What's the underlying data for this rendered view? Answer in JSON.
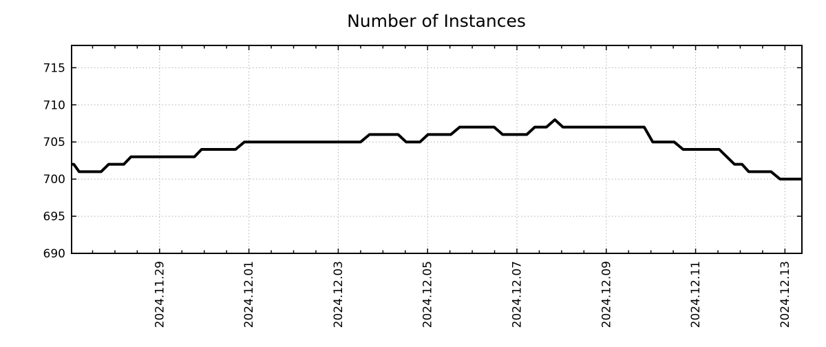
{
  "chart_data": {
    "type": "line",
    "title": "Number of Instances",
    "x_unit": "days (day 0 = 2024.11.27, i.e. two days before first labeled tick)",
    "xlim_days": [
      0.03,
      16.38
    ],
    "ylim": [
      690,
      718
    ],
    "y_ticks": [
      690,
      695,
      700,
      705,
      710,
      715
    ],
    "x_ticks": [
      {
        "label": "2024.11.29",
        "day": 2
      },
      {
        "label": "2024.12.01",
        "day": 4
      },
      {
        "label": "2024.12.03",
        "day": 6
      },
      {
        "label": "2024.12.05",
        "day": 8
      },
      {
        "label": "2024.12.07",
        "day": 10
      },
      {
        "label": "2024.12.09",
        "day": 12
      },
      {
        "label": "2024.12.11",
        "day": 14
      },
      {
        "label": "2024.12.13",
        "day": 16
      }
    ],
    "x_minor_tick_step_days": 0.5,
    "grid": "dotted",
    "legend": "none",
    "series": [
      {
        "name": "instances",
        "points": [
          [
            0.03,
            702
          ],
          [
            0.08,
            702
          ],
          [
            0.2,
            701
          ],
          [
            0.69,
            701
          ],
          [
            0.86,
            702
          ],
          [
            1.2,
            702
          ],
          [
            1.36,
            703
          ],
          [
            2.78,
            703
          ],
          [
            2.94,
            704
          ],
          [
            3.7,
            704
          ],
          [
            3.9,
            705
          ],
          [
            6.5,
            705
          ],
          [
            6.7,
            706
          ],
          [
            7.34,
            706
          ],
          [
            7.52,
            705
          ],
          [
            7.83,
            705
          ],
          [
            8.01,
            706
          ],
          [
            8.52,
            706
          ],
          [
            8.72,
            707
          ],
          [
            9.49,
            707
          ],
          [
            9.68,
            706
          ],
          [
            10.22,
            706
          ],
          [
            10.4,
            707
          ],
          [
            10.66,
            707
          ],
          [
            10.85,
            708
          ],
          [
            11.03,
            707
          ],
          [
            12.85,
            707
          ],
          [
            13.04,
            705
          ],
          [
            13.52,
            705
          ],
          [
            13.72,
            704
          ],
          [
            14.53,
            704
          ],
          [
            14.87,
            702
          ],
          [
            15.04,
            702
          ],
          [
            15.19,
            701
          ],
          [
            15.69,
            701
          ],
          [
            15.89,
            700
          ],
          [
            16.38,
            700
          ]
        ]
      }
    ],
    "styles": {
      "line_color": "#000000",
      "line_width": 4,
      "grid_color": "#ababab",
      "axis_color": "#000000",
      "text_color": "#000000",
      "background": "#ffffff"
    }
  }
}
